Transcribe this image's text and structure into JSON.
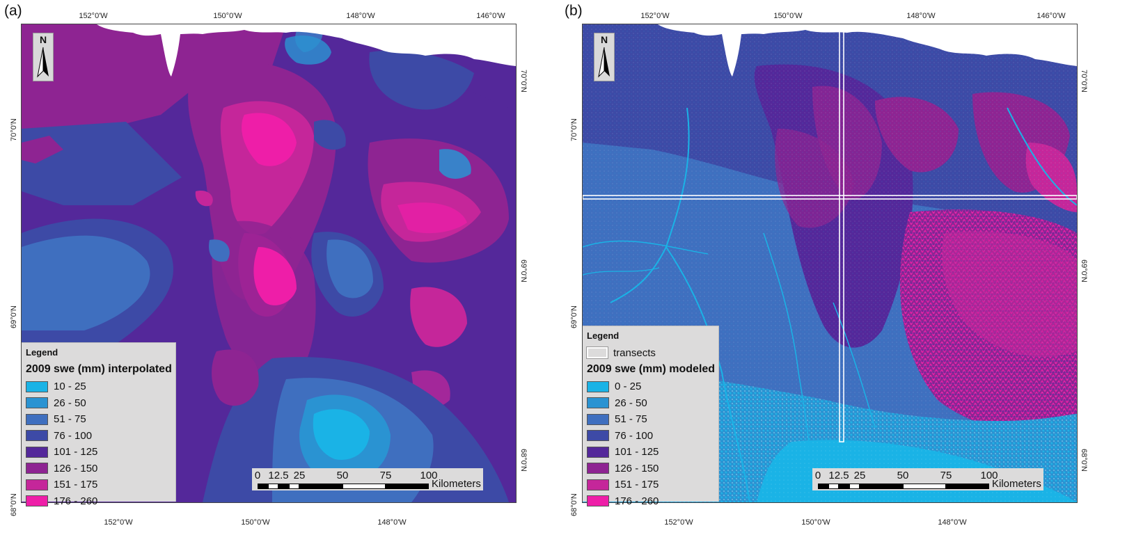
{
  "panels": [
    {
      "label": "(a)",
      "top_ticks": [
        "152°0'W",
        "150°0'W",
        "148°0'W",
        "146°0'W"
      ],
      "bottom_ticks": [
        "152°0'W",
        "150°0'W",
        "148°0'W"
      ],
      "left_ticks": [
        "70°0'N",
        "69°0'N",
        "68°0'N"
      ],
      "right_ticks": [
        "70°0'N",
        "69°0'N",
        "68°0'N"
      ],
      "north_letter": "N",
      "legend": {
        "title": "Legend",
        "subtitle": "2009 swe (mm) interpolated",
        "items": [
          {
            "label": "10 - 25",
            "color": "#1ab3e6"
          },
          {
            "label": "26 - 50",
            "color": "#2a93d2"
          },
          {
            "label": "51 - 75",
            "color": "#3f6fbf"
          },
          {
            "label": "76 - 100",
            "color": "#3d4aa6"
          },
          {
            "label": "101 - 125",
            "color": "#54289a"
          },
          {
            "label": "126 - 150",
            "color": "#8e2492"
          },
          {
            "label": "151 - 175",
            "color": "#c5269a"
          },
          {
            "label": "176 - 260",
            "color": "#ee1ea8"
          }
        ]
      },
      "scale": {
        "labels": [
          "0",
          "12.5",
          "25",
          "50",
          "75",
          "100"
        ],
        "unit": "Kilometers"
      }
    },
    {
      "label": "(b)",
      "top_ticks": [
        "152°0'W",
        "150°0'W",
        "148°0'W",
        "146°0'W"
      ],
      "bottom_ticks": [
        "152°0'W",
        "150°0'W",
        "148°0'W"
      ],
      "left_ticks": [
        "70°0'N",
        "69°0'N",
        "68°0'N"
      ],
      "right_ticks": [
        "70°0'N",
        "69°0'N",
        "68°0'N"
      ],
      "north_letter": "N",
      "legend": {
        "title": "Legend",
        "transect_label": "transects",
        "subtitle": "2009 swe (mm) modeled",
        "items": [
          {
            "label": "0 - 25",
            "color": "#1ab3e6"
          },
          {
            "label": "26 - 50",
            "color": "#2a93d2"
          },
          {
            "label": "51 - 75",
            "color": "#3f6fbf"
          },
          {
            "label": "76 - 100",
            "color": "#3d4aa6"
          },
          {
            "label": "101 - 125",
            "color": "#54289a"
          },
          {
            "label": "126 - 150",
            "color": "#8e2492"
          },
          {
            "label": "151 - 175",
            "color": "#c5269a"
          },
          {
            "label": "176 - 260",
            "color": "#ee1ea8"
          }
        ]
      },
      "scale": {
        "labels": [
          "0",
          "12.5",
          "25",
          "50",
          "75",
          "100"
        ],
        "unit": "Kilometers"
      }
    }
  ]
}
